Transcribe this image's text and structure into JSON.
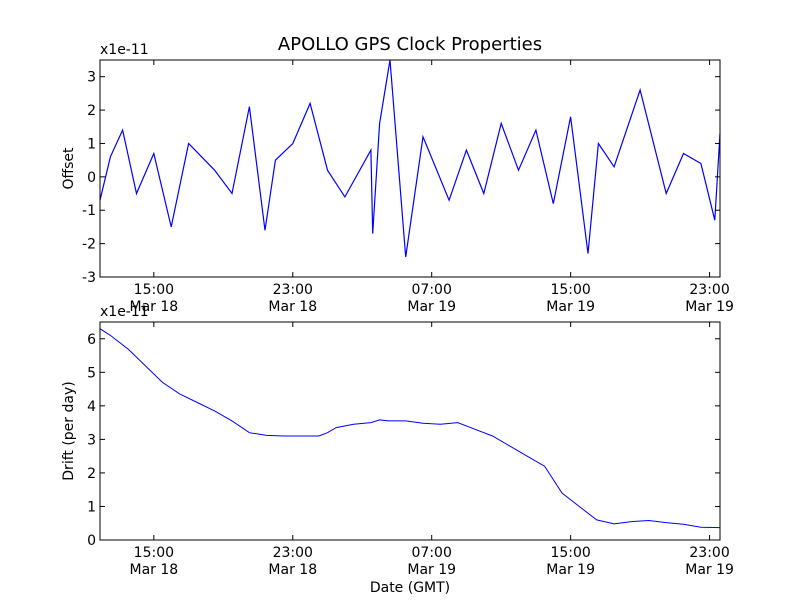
{
  "title": "APOLLO GPS Clock Properties",
  "xlabel": "Date (GMT)",
  "x_ticks": [
    {
      "time": "15:00",
      "date": "Mar 18",
      "hours": 15
    },
    {
      "time": "23:00",
      "date": "Mar 18",
      "hours": 23
    },
    {
      "time": "07:00",
      "date": "Mar 19",
      "hours": 31
    },
    {
      "time": "15:00",
      "date": "Mar 19",
      "hours": 39
    },
    {
      "time": "23:00",
      "date": "Mar 19",
      "hours": 47
    }
  ],
  "colors": {
    "series": "#0000ff",
    "axes": "#000000",
    "background": "#ffffff"
  },
  "chart_data": [
    {
      "type": "line",
      "ylabel": "Offset",
      "y_multiplier": "x1e-11",
      "xlim_hours": [
        11.9,
        47.6
      ],
      "ylim": [
        -3,
        3.5
      ],
      "yticks": [
        -3,
        -2,
        -1,
        0,
        1,
        2,
        3
      ],
      "series": [
        {
          "x_hours": [
            11.9,
            12.5,
            13.2,
            14.0,
            15.0,
            16.0,
            17.0,
            18.5,
            19.5,
            20.5,
            21.4,
            22.0,
            23.0,
            24.0,
            25.0,
            26.0,
            27.5,
            27.6,
            28.0,
            28.6,
            29.5,
            30.5,
            32.0,
            33.0,
            34.0,
            35.0,
            36.0,
            37.0,
            38.0,
            39.0,
            40.0,
            40.6,
            41.5,
            43.0,
            44.5,
            45.5,
            46.5,
            47.3,
            47.6
          ],
          "values": [
            -0.7,
            0.6,
            1.4,
            -0.5,
            0.7,
            -1.5,
            1.0,
            0.2,
            -0.5,
            2.1,
            -1.6,
            0.5,
            1.0,
            2.2,
            0.2,
            -0.6,
            0.8,
            -1.7,
            1.6,
            3.5,
            -2.4,
            1.2,
            -0.7,
            0.8,
            -0.5,
            1.6,
            0.2,
            1.4,
            -0.8,
            1.8,
            -2.3,
            1.0,
            0.3,
            2.6,
            -0.5,
            0.7,
            0.4,
            -1.3,
            1.3
          ]
        }
      ]
    },
    {
      "type": "line",
      "ylabel": "Drift (per day)",
      "y_multiplier": "x1e-11",
      "xlim_hours": [
        11.9,
        47.6
      ],
      "ylim": [
        0,
        6.5
      ],
      "yticks": [
        0,
        1,
        2,
        3,
        4,
        5,
        6
      ],
      "series": [
        {
          "x_hours": [
            11.9,
            12.5,
            13.5,
            14.5,
            15.5,
            16.5,
            17.5,
            18.5,
            19.5,
            20.5,
            21.5,
            22.5,
            23.5,
            24.5,
            25.0,
            25.5,
            26.5,
            27.5,
            28.0,
            28.5,
            29.5,
            30.5,
            31.5,
            32.5,
            33.5,
            34.5,
            35.5,
            36.5,
            37.5,
            38.5,
            39.5,
            40.5,
            41.5,
            42.5,
            43.5,
            44.5,
            45.5,
            46.5,
            47.6
          ],
          "values": [
            6.3,
            6.1,
            5.7,
            5.2,
            4.7,
            4.35,
            4.1,
            3.85,
            3.55,
            3.2,
            3.12,
            3.1,
            3.1,
            3.1,
            3.2,
            3.35,
            3.45,
            3.5,
            3.58,
            3.55,
            3.55,
            3.48,
            3.45,
            3.5,
            3.3,
            3.1,
            2.8,
            2.5,
            2.2,
            1.4,
            1.0,
            0.6,
            0.48,
            0.55,
            0.58,
            0.52,
            0.47,
            0.38,
            0.37
          ]
        }
      ]
    }
  ]
}
